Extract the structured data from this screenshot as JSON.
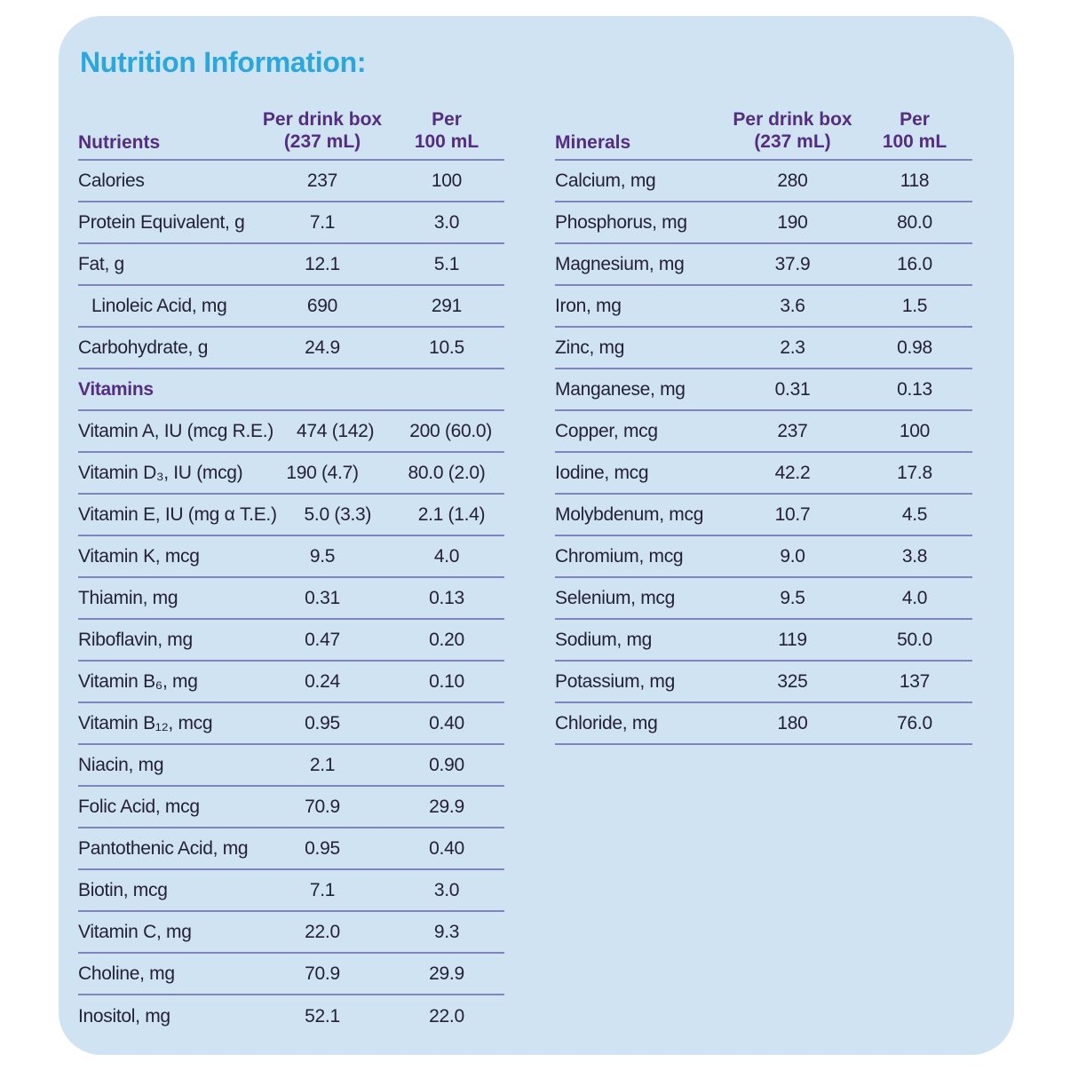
{
  "title": "Nutrition Information:",
  "colors": {
    "card_background": "#cfe3f2",
    "title_cyan": "#2ba7e0",
    "header_purple": "#542c85",
    "separator_line": "#8083bd",
    "body_text": "#24203a"
  },
  "left_table": {
    "name_header": "Nutrients",
    "per_box_header": "Per drink box\n(237 mL)",
    "per_100_header": "Per\n100 mL",
    "rows": [
      {
        "label": "Calories",
        "per_box": "237",
        "per_100": "100"
      },
      {
        "label": "Protein Equivalent, g",
        "per_box": "7.1",
        "per_100": "3.0"
      },
      {
        "label": "Fat, g",
        "per_box": "12.1",
        "per_100": "5.1"
      },
      {
        "label": "Linoleic Acid, mg",
        "per_box": "690",
        "per_100": "291",
        "indent": true
      },
      {
        "label": "Carbohydrate, g",
        "per_box": "24.9",
        "per_100": "10.5"
      },
      {
        "section": "Vitamins"
      },
      {
        "label": "Vitamin A, IU (mcg R.E.)",
        "per_box": "474 (142)",
        "per_100": "200 (60.0)"
      },
      {
        "label": "Vitamin D₃, IU (mcg)",
        "per_box": "190 (4.7)",
        "per_100": "80.0 (2.0)"
      },
      {
        "label": "Vitamin E, IU (mg α T.E.)",
        "per_box": "5.0 (3.3)",
        "per_100": "2.1 (1.4)"
      },
      {
        "label": "Vitamin K, mcg",
        "per_box": "9.5",
        "per_100": "4.0"
      },
      {
        "label": "Thiamin, mg",
        "per_box": "0.31",
        "per_100": "0.13"
      },
      {
        "label": "Riboflavin, mg",
        "per_box": "0.47",
        "per_100": "0.20"
      },
      {
        "label": "Vitamin B₆, mg",
        "per_box": "0.24",
        "per_100": "0.10"
      },
      {
        "label": "Vitamin B₁₂, mcg",
        "per_box": "0.95",
        "per_100": "0.40"
      },
      {
        "label": "Niacin, mg",
        "per_box": "2.1",
        "per_100": "0.90"
      },
      {
        "label": "Folic Acid, mcg",
        "per_box": "70.9",
        "per_100": "29.9"
      },
      {
        "label": "Pantothenic Acid, mg",
        "per_box": "0.95",
        "per_100": "0.40"
      },
      {
        "label": "Biotin, mcg",
        "per_box": "7.1",
        "per_100": "3.0"
      },
      {
        "label": "Vitamin C, mg",
        "per_box": "22.0",
        "per_100": "9.3"
      },
      {
        "label": "Choline, mg",
        "per_box": "70.9",
        "per_100": "29.9"
      },
      {
        "label": "Inositol, mg",
        "per_box": "52.1",
        "per_100": "22.0",
        "last": true
      }
    ]
  },
  "right_table": {
    "name_header": "Minerals",
    "per_box_header": "Per drink box\n(237 mL)",
    "per_100_header": "Per\n100 mL",
    "rows": [
      {
        "label": "Calcium, mg",
        "per_box": "280",
        "per_100": "118"
      },
      {
        "label": "Phosphorus, mg",
        "per_box": "190",
        "per_100": "80.0"
      },
      {
        "label": "Magnesium, mg",
        "per_box": "37.9",
        "per_100": "16.0"
      },
      {
        "label": "Iron, mg",
        "per_box": "3.6",
        "per_100": "1.5"
      },
      {
        "label": "Zinc, mg",
        "per_box": "2.3",
        "per_100": "0.98"
      },
      {
        "label": "Manganese, mg",
        "per_box": "0.31",
        "per_100": "0.13"
      },
      {
        "label": "Copper, mcg",
        "per_box": "237",
        "per_100": "100"
      },
      {
        "label": "Iodine, mcg",
        "per_box": "42.2",
        "per_100": "17.8"
      },
      {
        "label": "Molybdenum, mcg",
        "per_box": "10.7",
        "per_100": "4.5"
      },
      {
        "label": "Chromium, mcg",
        "per_box": "9.0",
        "per_100": "3.8"
      },
      {
        "label": "Selenium, mcg",
        "per_box": "9.5",
        "per_100": "4.0"
      },
      {
        "label": "Sodium, mg",
        "per_box": "119",
        "per_100": "50.0"
      },
      {
        "label": "Potassium, mg",
        "per_box": "325",
        "per_100": "137"
      },
      {
        "label": "Chloride, mg",
        "per_box": "180",
        "per_100": "76.0"
      }
    ]
  }
}
